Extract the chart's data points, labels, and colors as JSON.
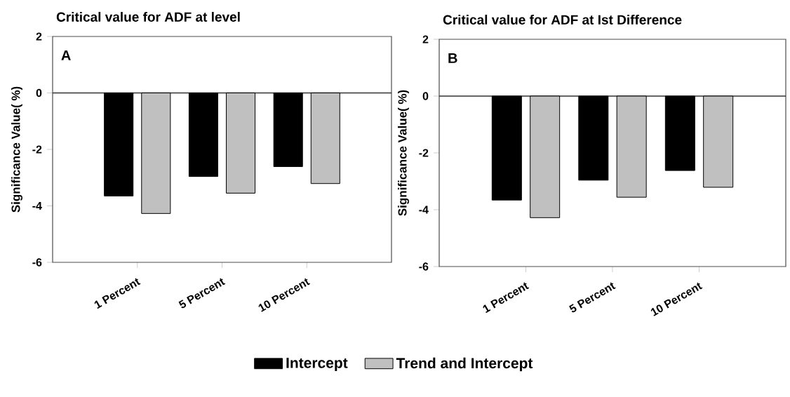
{
  "chart_data": [
    {
      "type": "bar",
      "title": "Critical value for ADF at level",
      "ylabel": "Significance Value( %)",
      "annotations": [
        "A"
      ],
      "categories": [
        "1 Percent",
        "5 Percent",
        "10 Percent"
      ],
      "series": [
        {
          "name": "Intercept",
          "color": "#000000",
          "values": [
            -3.65,
            -2.96,
            -2.61
          ]
        },
        {
          "name": "Trend and Intercept",
          "color": "#c0c0c0",
          "values": [
            -4.27,
            -3.55,
            -3.21
          ]
        }
      ],
      "ylim": [
        -6,
        2
      ],
      "yticks": [
        -6,
        -4,
        -2,
        0,
        2
      ],
      "legend": "bottom"
    },
    {
      "type": "bar",
      "title": "Critical value for ADF at Ist Difference",
      "ylabel": "Significance Value( %)",
      "annotations": [
        "B"
      ],
      "categories": [
        "1 Percent",
        "5 Percent",
        "10 Percent"
      ],
      "series": [
        {
          "color": "#000000",
          "values": [
            -3.66,
            -2.96,
            -2.62
          ]
        },
        {
          "color": "#c0c0c0",
          "values": [
            -4.28,
            -3.56,
            -3.21
          ]
        }
      ],
      "ylim": [
        -6,
        2
      ],
      "yticks": [
        -6,
        -4,
        -2,
        0,
        2
      ]
    }
  ]
}
